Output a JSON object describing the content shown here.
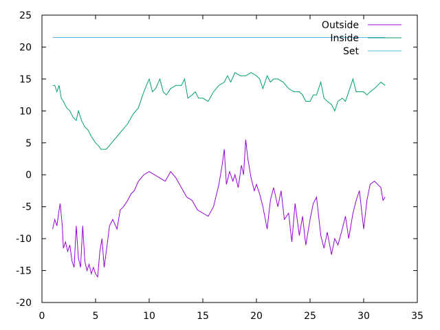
{
  "chart_data": {
    "type": "line",
    "title": "",
    "xlabel": "",
    "ylabel": "",
    "xlim": [
      0,
      35
    ],
    "ylim": [
      -20,
      25
    ],
    "xticks": [
      0,
      5,
      10,
      15,
      20,
      25,
      30,
      35
    ],
    "yticks": [
      -20,
      -15,
      -10,
      -5,
      0,
      5,
      10,
      15,
      20,
      25
    ],
    "grid": false,
    "legend_position": "top-right",
    "series": [
      {
        "name": "Outside",
        "color": "#9400d3",
        "points": [
          [
            1.0,
            -8.5
          ],
          [
            1.2,
            -7.0
          ],
          [
            1.4,
            -8.0
          ],
          [
            1.6,
            -5.5
          ],
          [
            1.7,
            -4.5
          ],
          [
            1.9,
            -8.0
          ],
          [
            2.0,
            -11.5
          ],
          [
            2.2,
            -10.5
          ],
          [
            2.4,
            -12.0
          ],
          [
            2.6,
            -11.0
          ],
          [
            2.8,
            -13.5
          ],
          [
            3.0,
            -14.5
          ],
          [
            3.2,
            -8.0
          ],
          [
            3.4,
            -13.0
          ],
          [
            3.6,
            -14.5
          ],
          [
            3.8,
            -8.0
          ],
          [
            4.0,
            -13.5
          ],
          [
            4.2,
            -15.0
          ],
          [
            4.4,
            -14.0
          ],
          [
            4.6,
            -15.5
          ],
          [
            4.8,
            -14.5
          ],
          [
            5.0,
            -15.5
          ],
          [
            5.2,
            -16.0
          ],
          [
            5.4,
            -12.0
          ],
          [
            5.6,
            -10.0
          ],
          [
            5.8,
            -14.5
          ],
          [
            6.0,
            -12.0
          ],
          [
            6.3,
            -8.0
          ],
          [
            6.6,
            -7.0
          ],
          [
            7.0,
            -8.5
          ],
          [
            7.3,
            -5.5
          ],
          [
            7.6,
            -5.0
          ],
          [
            8.0,
            -4.0
          ],
          [
            8.3,
            -3.0
          ],
          [
            8.6,
            -2.5
          ],
          [
            9.0,
            -1.0
          ],
          [
            9.5,
            0.0
          ],
          [
            10.0,
            0.5
          ],
          [
            10.5,
            0.0
          ],
          [
            11.0,
            -0.5
          ],
          [
            11.5,
            -1.0
          ],
          [
            12.0,
            0.5
          ],
          [
            12.5,
            -0.5
          ],
          [
            13.0,
            -2.0
          ],
          [
            13.5,
            -3.5
          ],
          [
            14.0,
            -4.0
          ],
          [
            14.5,
            -5.5
          ],
          [
            15.0,
            -6.0
          ],
          [
            15.5,
            -6.5
          ],
          [
            16.0,
            -5.0
          ],
          [
            16.5,
            -1.5
          ],
          [
            16.8,
            1.5
          ],
          [
            17.0,
            4.0
          ],
          [
            17.2,
            -1.5
          ],
          [
            17.5,
            0.5
          ],
          [
            17.8,
            -1.0
          ],
          [
            18.0,
            0.0
          ],
          [
            18.3,
            -2.0
          ],
          [
            18.6,
            1.5
          ],
          [
            18.8,
            0.0
          ],
          [
            19.0,
            5.5
          ],
          [
            19.2,
            2.5
          ],
          [
            19.5,
            -0.5
          ],
          [
            19.8,
            -2.5
          ],
          [
            20.0,
            -1.5
          ],
          [
            20.3,
            -3.0
          ],
          [
            20.6,
            -5.0
          ],
          [
            21.0,
            -8.5
          ],
          [
            21.3,
            -4.0
          ],
          [
            21.6,
            -2.0
          ],
          [
            22.0,
            -5.0
          ],
          [
            22.3,
            -2.5
          ],
          [
            22.6,
            -7.0
          ],
          [
            23.0,
            -6.0
          ],
          [
            23.3,
            -10.5
          ],
          [
            23.6,
            -4.5
          ],
          [
            24.0,
            -9.5
          ],
          [
            24.3,
            -6.5
          ],
          [
            24.6,
            -11.0
          ],
          [
            25.0,
            -7.0
          ],
          [
            25.3,
            -4.5
          ],
          [
            25.6,
            -3.5
          ],
          [
            26.0,
            -9.5
          ],
          [
            26.3,
            -11.5
          ],
          [
            26.6,
            -9.0
          ],
          [
            27.0,
            -12.5
          ],
          [
            27.3,
            -10.0
          ],
          [
            27.6,
            -11.0
          ],
          [
            28.0,
            -8.5
          ],
          [
            28.3,
            -6.5
          ],
          [
            28.6,
            -10.0
          ],
          [
            29.0,
            -6.0
          ],
          [
            29.3,
            -4.0
          ],
          [
            29.6,
            -2.5
          ],
          [
            30.0,
            -8.5
          ],
          [
            30.3,
            -4.0
          ],
          [
            30.6,
            -1.5
          ],
          [
            31.0,
            -1.0
          ],
          [
            31.3,
            -1.5
          ],
          [
            31.6,
            -2.0
          ],
          [
            31.8,
            -4.0
          ],
          [
            32.0,
            -3.5
          ]
        ]
      },
      {
        "name": "Inside",
        "color": "#009e73",
        "points": [
          [
            1.0,
            14.0
          ],
          [
            1.2,
            14.0
          ],
          [
            1.4,
            13.0
          ],
          [
            1.6,
            14.0
          ],
          [
            1.8,
            12.0
          ],
          [
            2.0,
            11.5
          ],
          [
            2.3,
            10.5
          ],
          [
            2.6,
            10.0
          ],
          [
            2.9,
            9.0
          ],
          [
            3.2,
            8.5
          ],
          [
            3.4,
            10.0
          ],
          [
            3.7,
            8.5
          ],
          [
            4.0,
            7.5
          ],
          [
            4.3,
            7.0
          ],
          [
            4.6,
            6.0
          ],
          [
            5.0,
            5.0
          ],
          [
            5.3,
            4.5
          ],
          [
            5.5,
            4.0
          ],
          [
            5.8,
            4.0
          ],
          [
            6.0,
            4.0
          ],
          [
            6.5,
            5.0
          ],
          [
            7.0,
            6.0
          ],
          [
            7.5,
            7.0
          ],
          [
            8.0,
            8.0
          ],
          [
            8.5,
            9.5
          ],
          [
            9.0,
            10.5
          ],
          [
            9.5,
            13.0
          ],
          [
            10.0,
            15.0
          ],
          [
            10.3,
            13.0
          ],
          [
            10.6,
            13.5
          ],
          [
            11.0,
            15.0
          ],
          [
            11.3,
            13.0
          ],
          [
            11.6,
            12.5
          ],
          [
            12.0,
            13.5
          ],
          [
            12.5,
            14.0
          ],
          [
            13.0,
            14.0
          ],
          [
            13.3,
            15.0
          ],
          [
            13.6,
            12.0
          ],
          [
            14.0,
            12.5
          ],
          [
            14.3,
            13.0
          ],
          [
            14.6,
            12.0
          ],
          [
            15.0,
            12.0
          ],
          [
            15.5,
            11.5
          ],
          [
            16.0,
            13.0
          ],
          [
            16.5,
            14.0
          ],
          [
            17.0,
            14.5
          ],
          [
            17.3,
            15.5
          ],
          [
            17.6,
            14.5
          ],
          [
            18.0,
            16.0
          ],
          [
            18.5,
            15.5
          ],
          [
            19.0,
            15.5
          ],
          [
            19.5,
            16.0
          ],
          [
            20.0,
            15.5
          ],
          [
            20.3,
            15.0
          ],
          [
            20.6,
            13.5
          ],
          [
            21.0,
            15.5
          ],
          [
            21.3,
            14.5
          ],
          [
            21.6,
            15.0
          ],
          [
            22.0,
            15.0
          ],
          [
            22.5,
            14.5
          ],
          [
            23.0,
            13.5
          ],
          [
            23.5,
            13.0
          ],
          [
            24.0,
            13.0
          ],
          [
            24.3,
            12.5
          ],
          [
            24.6,
            11.5
          ],
          [
            25.0,
            11.5
          ],
          [
            25.3,
            12.5
          ],
          [
            25.6,
            12.5
          ],
          [
            26.0,
            14.5
          ],
          [
            26.3,
            12.0
          ],
          [
            26.6,
            11.5
          ],
          [
            27.0,
            11.0
          ],
          [
            27.3,
            10.0
          ],
          [
            27.6,
            11.5
          ],
          [
            28.0,
            12.0
          ],
          [
            28.3,
            11.5
          ],
          [
            28.6,
            13.0
          ],
          [
            29.0,
            15.0
          ],
          [
            29.3,
            13.0
          ],
          [
            29.6,
            13.0
          ],
          [
            30.0,
            13.0
          ],
          [
            30.3,
            12.5
          ],
          [
            30.6,
            13.0
          ],
          [
            31.0,
            13.5
          ],
          [
            31.3,
            14.0
          ],
          [
            31.6,
            14.5
          ],
          [
            32.0,
            14.0
          ]
        ]
      },
      {
        "name": "Set",
        "color": "#56b4e9",
        "points": [
          [
            1.0,
            21.5
          ],
          [
            32.0,
            21.5
          ]
        ]
      }
    ]
  }
}
